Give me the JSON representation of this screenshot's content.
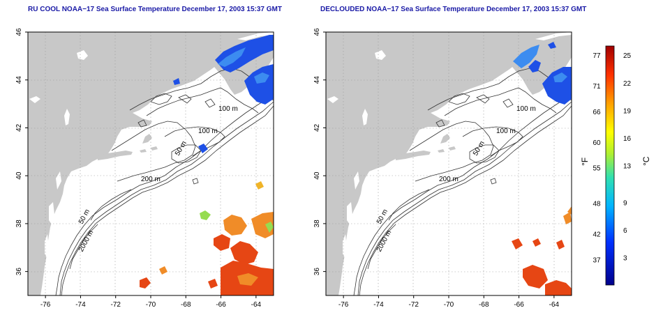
{
  "titles": {
    "left": "RU COOL NOAA−17 Sea Surface Temperature December 17, 2003 15:37 GMT",
    "right": "DECLOUDED NOAA−17 Sea Surface Temperature December 17, 2003 15:37 GMT"
  },
  "axes": {
    "lon_ticks": [
      "-76",
      "-74",
      "-72",
      "-70",
      "-68",
      "-66",
      "-64"
    ],
    "lat_ticks": [
      "36",
      "38",
      "40",
      "42",
      "44",
      "46"
    ],
    "lon_range": [
      -77,
      -63
    ],
    "lat_range": [
      35,
      46
    ]
  },
  "contour_labels": {
    "m100a": "100 m",
    "m100b": "100 m",
    "m50a": "50 m",
    "m200": "200 m",
    "m50b": "50 m",
    "m2000": "2000 m"
  },
  "colorbar": {
    "fahrenheit_label": "°F",
    "celsius_label": "°C",
    "fahrenheit_ticks": [
      "77",
      "71",
      "66",
      "60",
      "55",
      "48",
      "42",
      "37"
    ],
    "celsius_ticks": [
      "25",
      "22",
      "19",
      "16",
      "13",
      "9",
      "6",
      "3"
    ],
    "range_c": [
      0,
      26
    ]
  },
  "colors": {
    "land": "#c8c8c8",
    "title": "#1a1aa6",
    "cold": "#1e50e6",
    "warm": "#e64614",
    "warm2": "#f08c28",
    "mid": "#96dc50"
  }
}
